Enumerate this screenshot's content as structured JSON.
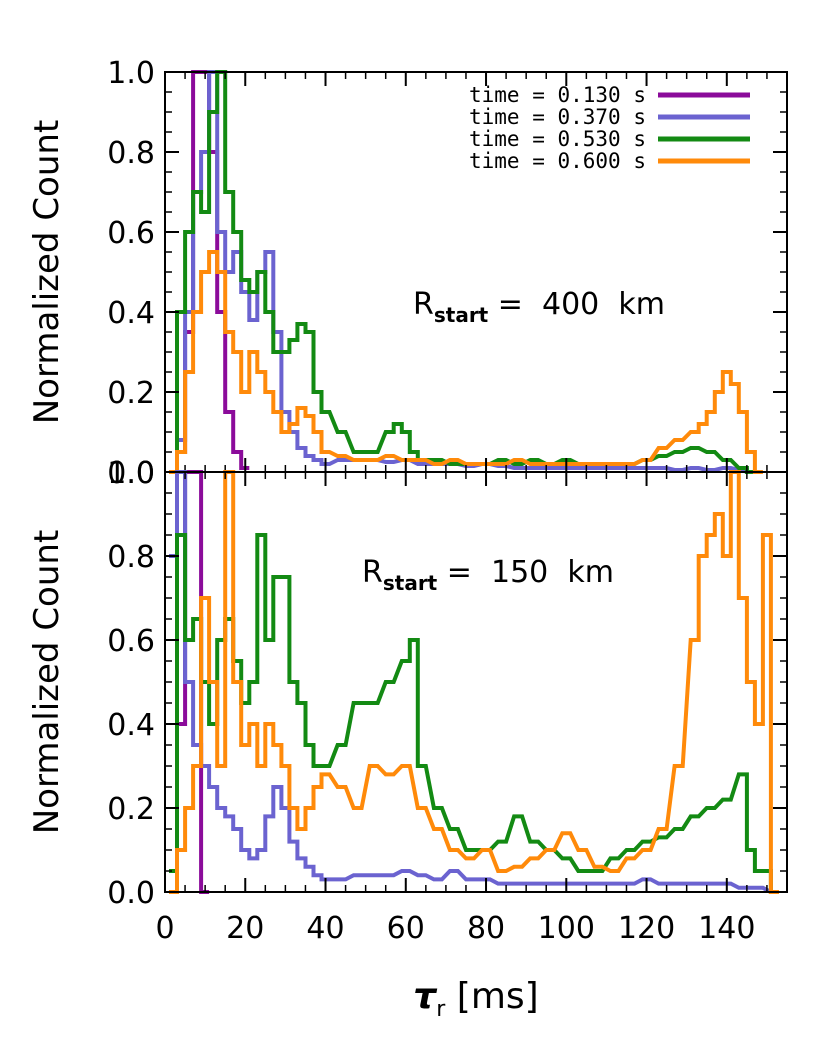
{
  "chart_data": [
    {
      "type": "line",
      "panel": "top",
      "annotation": {
        "main": "R",
        "sub": "start",
        "rest": " =  400  km"
      },
      "xlim": [
        0,
        155
      ],
      "ylim": [
        0,
        1.0
      ],
      "ylabel": "Normalized Count",
      "yticks": [
        "0.0",
        "0.2",
        "0.4",
        "0.6",
        "0.8",
        "1.0"
      ],
      "legend": [
        {
          "label": "time = 0.130 s",
          "color": "#8b0b9a"
        },
        {
          "label": "time = 0.370 s",
          "color": "#6b63d0"
        },
        {
          "label": "time = 0.530 s",
          "color": "#138a13"
        },
        {
          "label": "time = 0.600 s",
          "color": "#ff8a0a"
        }
      ],
      "legend_position": "top-right",
      "series": [
        {
          "name": "time = 0.130 s",
          "color": "#8b0b9a",
          "x": [
            2,
            4,
            6,
            8,
            10,
            12,
            14,
            16,
            18,
            20
          ],
          "y": [
            0,
            0.05,
            0.35,
            1.0,
            1.0,
            0.8,
            0.4,
            0.15,
            0.05,
            0.01
          ]
        },
        {
          "name": "time = 0.370 s",
          "color": "#6b63d0",
          "x": [
            2,
            4,
            6,
            8,
            10,
            12,
            14,
            16,
            18,
            20,
            22,
            24,
            26,
            28,
            30,
            32,
            34,
            36,
            38,
            40,
            44,
            48,
            52,
            56,
            60,
            64,
            68,
            72,
            76,
            80,
            84,
            88,
            92,
            96,
            100,
            104,
            108,
            112,
            116,
            120,
            124,
            128,
            132,
            136,
            140,
            144,
            146
          ],
          "y": [
            0,
            0.08,
            0.4,
            0.7,
            0.8,
            1.0,
            0.6,
            0.5,
            0.55,
            0.45,
            0.38,
            0.5,
            0.55,
            0.35,
            0.15,
            0.1,
            0.06,
            0.04,
            0.03,
            0.02,
            0.03,
            0.03,
            0.03,
            0.025,
            0.03,
            0.02,
            0.02,
            0.02,
            0.015,
            0.02,
            0.015,
            0.01,
            0.01,
            0.01,
            0.01,
            0.01,
            0.01,
            0.01,
            0.01,
            0.01,
            0.01,
            0.005,
            0.01,
            0.005,
            0.01,
            0.005,
            0
          ]
        },
        {
          "name": "time = 0.530 s",
          "color": "#138a13",
          "x": [
            2,
            4,
            6,
            8,
            10,
            12,
            14,
            16,
            18,
            20,
            22,
            24,
            26,
            28,
            30,
            32,
            34,
            36,
            38,
            40,
            44,
            48,
            52,
            56,
            58,
            60,
            62,
            64,
            68,
            72,
            76,
            80,
            84,
            88,
            92,
            96,
            100,
            104,
            108,
            112,
            116,
            120,
            124,
            128,
            132,
            136,
            140,
            144,
            146
          ],
          "y": [
            0,
            0.4,
            0.6,
            0.7,
            0.65,
            0.9,
            1.0,
            0.7,
            0.6,
            0.48,
            0.45,
            0.5,
            0.4,
            0.3,
            0.3,
            0.33,
            0.37,
            0.35,
            0.2,
            0.15,
            0.1,
            0.05,
            0.05,
            0.1,
            0.12,
            0.1,
            0.05,
            0.03,
            0.03,
            0.02,
            0.02,
            0.02,
            0.03,
            0.02,
            0.03,
            0.02,
            0.03,
            0.02,
            0.02,
            0.02,
            0.02,
            0.03,
            0.04,
            0.05,
            0.06,
            0.05,
            0.03,
            0.01,
            0
          ]
        },
        {
          "name": "time = 0.600 s",
          "color": "#ff8a0a",
          "x": [
            2,
            4,
            6,
            8,
            10,
            12,
            14,
            16,
            18,
            20,
            22,
            24,
            26,
            28,
            30,
            32,
            34,
            36,
            38,
            40,
            44,
            48,
            52,
            56,
            60,
            64,
            68,
            72,
            76,
            80,
            84,
            88,
            92,
            96,
            100,
            104,
            108,
            112,
            116,
            120,
            124,
            128,
            132,
            134,
            136,
            138,
            140,
            142,
            144,
            146,
            148
          ],
          "y": [
            0,
            0.05,
            0.25,
            0.4,
            0.5,
            0.55,
            0.5,
            0.35,
            0.3,
            0.2,
            0.3,
            0.25,
            0.2,
            0.15,
            0.1,
            0.12,
            0.16,
            0.14,
            0.1,
            0.05,
            0.04,
            0.03,
            0.03,
            0.04,
            0.03,
            0.03,
            0.02,
            0.03,
            0.02,
            0.02,
            0.02,
            0.03,
            0.02,
            0.02,
            0.02,
            0.02,
            0.02,
            0.02,
            0.02,
            0.03,
            0.06,
            0.08,
            0.1,
            0.12,
            0.15,
            0.2,
            0.25,
            0.22,
            0.15,
            0.05,
            0
          ]
        }
      ]
    },
    {
      "type": "line",
      "panel": "bottom",
      "annotation": {
        "main": "R",
        "sub": "start",
        "rest": " =  150  km"
      },
      "xlim": [
        0,
        155
      ],
      "ylim": [
        0,
        1.0
      ],
      "xlabel": {
        "main": "τ",
        "sub": "r",
        "rest": " [ms]"
      },
      "ylabel": "Normalized Count",
      "xticks": [
        "0",
        "20",
        "40",
        "60",
        "80",
        "100",
        "120",
        "140"
      ],
      "yticks": [
        "0.0",
        "0.2",
        "0.4",
        "0.6",
        "0.8",
        "1.0"
      ],
      "series": [
        {
          "name": "time = 0.130 s",
          "color": "#8b0b9a",
          "x": [
            2,
            4,
            6,
            8,
            10
          ],
          "y": [
            0,
            0.4,
            1.0,
            1.0,
            0
          ]
        },
        {
          "name": "time = 0.370 s",
          "color": "#6b63d0",
          "x": [
            2,
            4,
            6,
            8,
            10,
            12,
            14,
            16,
            18,
            20,
            22,
            24,
            26,
            28,
            30,
            32,
            34,
            36,
            38,
            40,
            44,
            48,
            52,
            56,
            60,
            64,
            68,
            72,
            76,
            80,
            84,
            88,
            92,
            96,
            100,
            104,
            108,
            112,
            116,
            120,
            124,
            128,
            132,
            136,
            140,
            144,
            148,
            152
          ],
          "y": [
            0.8,
            1.0,
            0.5,
            0.35,
            0.3,
            0.25,
            0.2,
            0.18,
            0.15,
            0.1,
            0.08,
            0.1,
            0.18,
            0.25,
            0.2,
            0.12,
            0.08,
            0.06,
            0.04,
            0.03,
            0.03,
            0.04,
            0.04,
            0.04,
            0.05,
            0.04,
            0.03,
            0.05,
            0.03,
            0.03,
            0.02,
            0.02,
            0.02,
            0.02,
            0.02,
            0.02,
            0.02,
            0.02,
            0.02,
            0.03,
            0.02,
            0.02,
            0.02,
            0.02,
            0.02,
            0.01,
            0.01,
            0
          ]
        },
        {
          "name": "time = 0.530 s",
          "color": "#138a13",
          "x": [
            2,
            4,
            6,
            8,
            10,
            12,
            14,
            16,
            18,
            20,
            22,
            24,
            26,
            28,
            30,
            32,
            34,
            36,
            38,
            40,
            44,
            48,
            52,
            56,
            60,
            62,
            64,
            68,
            72,
            76,
            80,
            84,
            88,
            92,
            96,
            100,
            104,
            108,
            112,
            116,
            120,
            124,
            128,
            132,
            136,
            140,
            144,
            146,
            148,
            150,
            152
          ],
          "y": [
            0.05,
            0.85,
            0.6,
            0.65,
            0.5,
            0.4,
            0.6,
            0.65,
            0.55,
            0.45,
            0.5,
            0.85,
            0.6,
            0.75,
            0.75,
            0.5,
            0.45,
            0.35,
            0.3,
            0.3,
            0.35,
            0.45,
            0.45,
            0.5,
            0.55,
            0.6,
            0.3,
            0.2,
            0.15,
            0.1,
            0.1,
            0.12,
            0.18,
            0.12,
            0.1,
            0.08,
            0.05,
            0.05,
            0.08,
            0.1,
            0.12,
            0.13,
            0.15,
            0.18,
            0.2,
            0.22,
            0.28,
            0.1,
            0.05,
            0.05,
            0
          ]
        },
        {
          "name": "time = 0.600 s",
          "color": "#ff8a0a",
          "x": [
            2,
            4,
            6,
            8,
            10,
            12,
            14,
            16,
            18,
            20,
            22,
            24,
            26,
            28,
            30,
            32,
            34,
            36,
            38,
            40,
            44,
            48,
            52,
            56,
            60,
            64,
            68,
            72,
            76,
            80,
            84,
            88,
            92,
            96,
            100,
            104,
            108,
            112,
            116,
            120,
            124,
            128,
            132,
            134,
            136,
            138,
            140,
            142,
            144,
            146,
            148,
            150,
            152
          ],
          "y": [
            0,
            0.1,
            0.2,
            0.3,
            0.7,
            0.5,
            0.3,
            1.0,
            0.5,
            0.35,
            0.4,
            0.3,
            0.4,
            0.35,
            0.3,
            0.2,
            0.15,
            0.2,
            0.25,
            0.28,
            0.25,
            0.2,
            0.3,
            0.28,
            0.3,
            0.2,
            0.15,
            0.1,
            0.08,
            0.1,
            0.05,
            0.06,
            0.08,
            0.1,
            0.14,
            0.1,
            0.06,
            0.05,
            0.08,
            0.1,
            0.15,
            0.3,
            0.6,
            0.8,
            0.85,
            0.9,
            0.8,
            1.0,
            0.7,
            0.5,
            0.4,
            0.85,
            0
          ]
        }
      ]
    }
  ]
}
